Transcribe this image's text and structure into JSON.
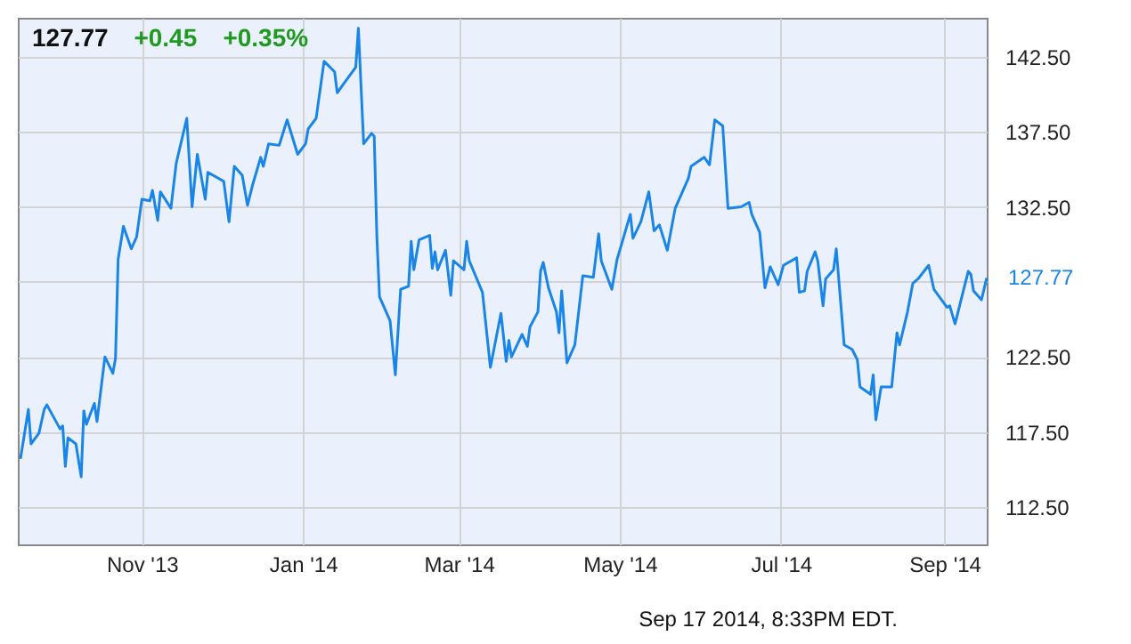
{
  "chart_data": {
    "type": "line",
    "x": [
      "2013-09-16",
      "2013-09-19",
      "2013-09-20",
      "2013-09-23",
      "2013-09-25",
      "2013-09-26",
      "2013-10-01",
      "2013-10-02",
      "2013-10-03",
      "2013-10-04",
      "2013-10-07",
      "2013-10-09",
      "2013-10-10",
      "2013-10-11",
      "2013-10-14",
      "2013-10-15",
      "2013-10-18",
      "2013-10-21",
      "2013-10-22",
      "2013-10-23",
      "2013-10-25",
      "2013-10-28",
      "2013-10-30",
      "2013-11-01",
      "2013-11-04",
      "2013-11-05",
      "2013-11-07",
      "2013-11-08",
      "2013-11-12",
      "2013-11-14",
      "2013-11-18",
      "2013-11-20",
      "2013-11-22",
      "2013-11-25",
      "2013-11-26",
      "2013-12-02",
      "2013-12-04",
      "2013-12-06",
      "2013-12-09",
      "2013-12-11",
      "2013-12-13",
      "2013-12-16",
      "2013-12-17",
      "2013-12-19",
      "2013-12-23",
      "2013-12-26",
      "2013-12-30",
      "2014-01-02",
      "2014-01-03",
      "2014-01-06",
      "2014-01-09",
      "2014-01-13",
      "2014-01-14",
      "2014-01-16",
      "2014-01-21",
      "2014-01-22",
      "2014-01-24",
      "2014-01-27",
      "2014-01-28",
      "2014-01-29",
      "2014-01-30",
      "2014-02-03",
      "2014-02-05",
      "2014-02-07",
      "2014-02-10",
      "2014-02-11",
      "2014-02-12",
      "2014-02-14",
      "2014-02-18",
      "2014-02-19",
      "2014-02-20",
      "2014-02-21",
      "2014-02-24",
      "2014-02-26",
      "2014-02-27",
      "2014-03-03",
      "2014-03-04",
      "2014-03-05",
      "2014-03-10",
      "2014-03-13",
      "2014-03-17",
      "2014-03-19",
      "2014-03-20",
      "2014-03-21",
      "2014-03-25",
      "2014-03-27",
      "2014-03-28",
      "2014-03-31",
      "2014-04-01",
      "2014-04-02",
      "2014-04-04",
      "2014-04-07",
      "2014-04-08",
      "2014-04-09",
      "2014-04-11",
      "2014-04-14",
      "2014-04-17",
      "2014-04-21",
      "2014-04-23",
      "2014-04-24",
      "2014-04-28",
      "2014-04-30",
      "2014-05-02",
      "2014-05-05",
      "2014-05-06",
      "2014-05-09",
      "2014-05-12",
      "2014-05-14",
      "2014-05-16",
      "2014-05-19",
      "2014-05-22",
      "2014-05-27",
      "2014-05-28",
      "2014-06-02",
      "2014-06-04",
      "2014-06-06",
      "2014-06-09",
      "2014-06-11",
      "2014-06-16",
      "2014-06-19",
      "2014-06-20",
      "2014-06-23",
      "2014-06-25",
      "2014-06-27",
      "2014-06-30",
      "2014-07-02",
      "2014-07-07",
      "2014-07-08",
      "2014-07-10",
      "2014-07-11",
      "2014-07-14",
      "2014-07-15",
      "2014-07-17",
      "2014-07-18",
      "2014-07-21",
      "2014-07-22",
      "2014-07-25",
      "2014-07-28",
      "2014-07-30",
      "2014-07-31",
      "2014-08-04",
      "2014-08-05",
      "2014-08-06",
      "2014-08-08",
      "2014-08-12",
      "2014-08-14",
      "2014-08-15",
      "2014-08-18",
      "2014-08-20",
      "2014-08-22",
      "2014-08-26",
      "2014-08-28",
      "2014-09-02",
      "2014-09-03",
      "2014-09-05",
      "2014-09-08",
      "2014-09-10",
      "2014-09-11",
      "2014-09-12",
      "2014-09-15",
      "2014-09-17"
    ],
    "series": [
      {
        "color": "#1a85e8",
        "values": [
          115.7,
          119.0,
          116.7,
          117.4,
          119.0,
          119.3,
          117.7,
          117.9,
          115.2,
          117.1,
          116.7,
          114.5,
          118.9,
          118.0,
          119.4,
          118.2,
          122.5,
          121.4,
          122.4,
          129.0,
          131.2,
          129.7,
          130.5,
          133.0,
          132.9,
          133.6,
          131.6,
          133.5,
          132.4,
          135.4,
          138.4,
          132.5,
          136.0,
          133.0,
          134.8,
          134.2,
          131.5,
          135.2,
          134.6,
          132.6,
          134.0,
          135.8,
          135.2,
          136.7,
          136.6,
          138.3,
          136.0,
          136.7,
          137.7,
          138.4,
          142.2,
          141.5,
          140.1,
          140.6,
          141.8,
          144.4,
          136.7,
          137.4,
          137.2,
          130.5,
          126.5,
          124.9,
          121.3,
          127.0,
          127.2,
          130.2,
          128.3,
          130.3,
          130.6,
          128.4,
          129.5,
          128.3,
          129.6,
          126.6,
          128.9,
          128.3,
          130.2,
          128.9,
          126.8,
          121.8,
          125.4,
          122.2,
          123.6,
          122.5,
          124.0,
          123.2,
          124.5,
          125.5,
          128.2,
          128.8,
          127.1,
          125.5,
          124.1,
          126.9,
          122.1,
          123.3,
          127.9,
          127.8,
          130.7,
          128.9,
          127.0,
          129.0,
          130.2,
          132.0,
          130.4,
          131.5,
          133.5,
          130.9,
          131.3,
          129.6,
          132.4,
          134.4,
          135.2,
          135.8,
          135.3,
          138.3,
          137.9,
          132.4,
          132.5,
          132.8,
          132.0,
          130.8,
          127.1,
          128.5,
          127.3,
          128.6,
          129.1,
          126.8,
          126.9,
          128.2,
          129.5,
          128.9,
          125.9,
          127.7,
          128.3,
          129.7,
          123.3,
          123.0,
          122.3,
          120.5,
          120.0,
          121.3,
          118.3,
          120.5,
          120.5,
          124.1,
          123.3,
          125.5,
          127.4,
          127.7,
          128.6,
          127.0,
          125.8,
          125.9,
          124.7,
          126.8,
          128.2,
          128.0,
          126.9,
          126.3,
          127.77
        ]
      }
    ],
    "xlim": [
      "2013-09-15",
      "2014-09-17"
    ],
    "xticks": [
      {
        "value": "2013-11-01",
        "label": "Nov '13"
      },
      {
        "value": "2014-01-01",
        "label": "Jan '14"
      },
      {
        "value": "2014-03-01",
        "label": "Mar '14"
      },
      {
        "value": "2014-05-01",
        "label": "May '14"
      },
      {
        "value": "2014-07-01",
        "label": "Jul '14"
      },
      {
        "value": "2014-09-01",
        "label": "Sep '14"
      }
    ],
    "ylim": [
      110,
      145.1
    ],
    "yticks": [
      {
        "value": 112.5,
        "label": "112.50"
      },
      {
        "value": 117.5,
        "label": "117.50"
      },
      {
        "value": 122.5,
        "label": "122.50"
      },
      {
        "value": 127.5,
        "label": null
      },
      {
        "value": 132.5,
        "label": "132.50"
      },
      {
        "value": 137.5,
        "label": "137.50"
      },
      {
        "value": 142.5,
        "label": "142.50"
      }
    ],
    "grid": true,
    "annotations": [
      "127.77",
      "+0.45",
      "+0.35%",
      "Sep 17 2014, 8:33PM EDT.",
      {
        "text": "127.77",
        "x": "2014-09-17",
        "y": 127.77
      }
    ]
  }
}
